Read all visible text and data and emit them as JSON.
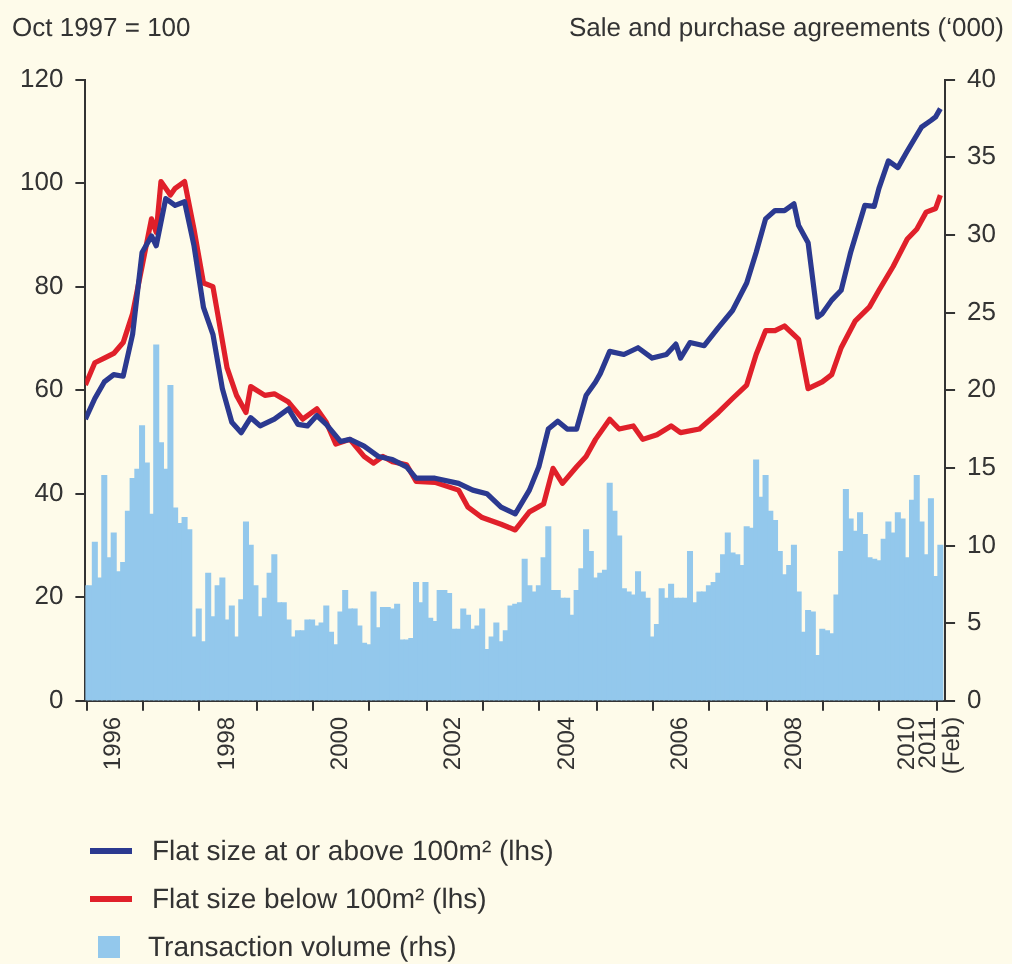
{
  "chart_data": {
    "type": "line",
    "ylabel": "Oct 1997 = 100",
    "y2label": "Sale and purchase agreements (‘000)",
    "legend": "bottom",
    "marker": "none",
    "x": [
      "1996-01",
      "1996-02",
      "1996-03",
      "1996-04",
      "1996-05",
      "1996-06",
      "1996-07",
      "1996-08",
      "1996-09",
      "1996-10",
      "1996-11",
      "1996-12",
      "1997-01",
      "1997-02",
      "1997-03",
      "1997-04",
      "1997-05",
      "1997-06",
      "1997-07",
      "1997-08",
      "1997-09",
      "1997-10",
      "1997-11",
      "1997-12",
      "1998-01",
      "1998-02",
      "1998-03",
      "1998-04",
      "1998-05",
      "1998-06",
      "1998-07",
      "1998-08",
      "1998-09",
      "1998-10",
      "1998-11",
      "1998-12",
      "1999-01",
      "1999-02",
      "1999-03",
      "1999-04",
      "1999-05",
      "1999-06",
      "1999-07",
      "1999-08",
      "1999-09",
      "1999-10",
      "1999-11",
      "1999-12",
      "2000-01",
      "2000-02",
      "2000-03",
      "2000-04",
      "2000-05",
      "2000-06",
      "2000-07",
      "2000-08",
      "2000-09",
      "2000-10",
      "2000-11",
      "2000-12",
      "2001-01",
      "2001-02",
      "2001-03",
      "2001-04",
      "2001-05",
      "2001-06",
      "2001-07",
      "2001-08",
      "2001-09",
      "2001-10",
      "2001-11",
      "2001-12",
      "2002-01",
      "2002-02",
      "2002-03",
      "2002-04",
      "2002-05",
      "2002-06",
      "2002-07",
      "2002-08",
      "2002-09",
      "2002-10",
      "2002-11",
      "2002-12",
      "2003-01",
      "2003-02",
      "2003-03",
      "2003-04",
      "2003-05",
      "2003-06",
      "2003-07",
      "2003-08",
      "2003-09",
      "2003-10",
      "2003-11",
      "2003-12",
      "2004-01",
      "2004-02",
      "2004-03",
      "2004-04",
      "2004-05",
      "2004-06",
      "2004-07",
      "2004-08",
      "2004-09",
      "2004-10",
      "2004-11",
      "2004-12",
      "2005-01",
      "2005-02",
      "2005-03",
      "2005-04",
      "2005-05",
      "2005-06",
      "2005-07",
      "2005-08",
      "2005-09",
      "2005-10",
      "2005-11",
      "2005-12",
      "2006-01",
      "2006-02",
      "2006-03",
      "2006-04",
      "2006-05",
      "2006-06",
      "2006-07",
      "2006-08",
      "2006-09",
      "2006-10",
      "2006-11",
      "2006-12",
      "2007-01",
      "2007-02",
      "2007-03",
      "2007-04",
      "2007-05",
      "2007-06",
      "2007-07",
      "2007-08",
      "2007-09",
      "2007-10",
      "2007-11",
      "2007-12",
      "2008-01",
      "2008-02",
      "2008-03",
      "2008-04",
      "2008-05",
      "2008-06",
      "2008-07",
      "2008-08",
      "2008-09",
      "2008-10",
      "2008-11",
      "2008-12",
      "2009-01",
      "2009-02",
      "2009-03",
      "2009-04",
      "2009-05",
      "2009-06",
      "2009-07",
      "2009-08",
      "2009-09",
      "2009-10",
      "2009-11",
      "2009-12",
      "2010-01",
      "2010-02",
      "2010-03",
      "2010-04",
      "2010-05",
      "2010-06",
      "2010-07",
      "2010-08",
      "2010-09",
      "2010-10",
      "2010-11",
      "2010-12",
      "2011-01",
      "2011-02"
    ],
    "xlim": [
      "1996-01",
      "2011-03"
    ],
    "xticks": [
      {
        "value": "1996-01",
        "label": null
      },
      {
        "value": "1997-01",
        "label": null
      },
      {
        "value": "1998-01",
        "label": null
      },
      {
        "value": "1999-01",
        "label": null
      },
      {
        "value": "2000-01",
        "label": null
      },
      {
        "value": "2001-01",
        "label": null
      },
      {
        "value": "2002-01",
        "label": null
      },
      {
        "value": "2003-01",
        "label": null
      },
      {
        "value": "2004-01",
        "label": null
      },
      {
        "value": "2005-01",
        "label": null
      },
      {
        "value": "2006-01",
        "label": null
      },
      {
        "value": "2007-01",
        "label": null
      },
      {
        "value": "2008-01",
        "label": null
      },
      {
        "value": "2009-01",
        "label": null
      },
      {
        "value": "2010-01",
        "label": null
      },
      {
        "value": "2011-01",
        "label": null
      },
      {
        "value": "1996-07",
        "label": "1996"
      },
      {
        "value": "1998-07",
        "label": "1998"
      },
      {
        "value": "2000-07",
        "label": "2000"
      },
      {
        "value": "2002-07",
        "label": "2002"
      },
      {
        "value": "2004-07",
        "label": "2004"
      },
      {
        "value": "2006-07",
        "label": "2006"
      },
      {
        "value": "2008-07",
        "label": "2008"
      },
      {
        "value": "2010-07",
        "label": "2010"
      },
      {
        "value": "2011-02",
        "label": "2011 (Feb)"
      }
    ],
    "ylim": [
      0,
      120
    ],
    "yticks": [
      0,
      20,
      40,
      60,
      80,
      100,
      120
    ],
    "y2lim": [
      0,
      40
    ],
    "y2ticks": [
      0,
      5,
      10,
      15,
      20,
      25,
      30,
      35,
      40
    ],
    "series": [
      {
        "name": "Flat size at or above 100m² (lhs)",
        "color": "#2b3990",
        "x": [
          "1996-01",
          "1996-03",
          "1996-05",
          "1996-07",
          "1996-09",
          "1996-11",
          "1997-01",
          "1997-03",
          "1997-04",
          "1997-06",
          "1997-08",
          "1997-10",
          "1997-12",
          "1998-02",
          "1998-04",
          "1998-06",
          "1998-08",
          "1998-10",
          "1998-12",
          "1999-02",
          "1999-05",
          "1999-08",
          "1999-10",
          "1999-12",
          "2000-02",
          "2000-04",
          "2000-07",
          "2000-09",
          "2000-12",
          "2001-03",
          "2001-06",
          "2001-09",
          "2001-11",
          "2002-03",
          "2002-08",
          "2002-11",
          "2003-02",
          "2003-05",
          "2003-08",
          "2003-11",
          "2004-01",
          "2004-03",
          "2004-05",
          "2004-07",
          "2004-09",
          "2004-11",
          "2005-01",
          "2005-02",
          "2005-04",
          "2005-07",
          "2005-10",
          "2006-01",
          "2006-04",
          "2006-06",
          "2006-07",
          "2006-09",
          "2006-12",
          "2007-03",
          "2007-06",
          "2007-09",
          "2007-11",
          "2008-01",
          "2008-03",
          "2008-05",
          "2008-07",
          "2008-08",
          "2008-10",
          "2008-12",
          "2009-01",
          "2009-03",
          "2009-05",
          "2009-07",
          "2009-10",
          "2009-12",
          "2010-01",
          "2010-03",
          "2010-05",
          "2010-07",
          "2010-10",
          "2010-12",
          "2011-01",
          "2011-02"
        ],
        "values": [
          54.4,
          58.4,
          61.6,
          63,
          62.7,
          70.8,
          86.6,
          89.8,
          87.9,
          97,
          95.7,
          96.4,
          87.9,
          76,
          70.8,
          60.3,
          53.8,
          51.8,
          54.7,
          53.1,
          54.4,
          56.4,
          53.4,
          53.1,
          55.1,
          53.4,
          50.1,
          50.5,
          49.2,
          47.2,
          46.6,
          45.2,
          43,
          43,
          42,
          40.7,
          40,
          37.4,
          36.1,
          40.7,
          45.2,
          52.5,
          54,
          52.5,
          52.5,
          59,
          61.6,
          63.2,
          67.5,
          66.9,
          68.2,
          66.2,
          66.9,
          68.9,
          66.2,
          69.2,
          68.6,
          72.1,
          75.4,
          80.7,
          86.6,
          93.1,
          94.7,
          94.7,
          96,
          91.8,
          88.5,
          74.1,
          74.8,
          77.4,
          79.3,
          86.6,
          95.7,
          95.5,
          99,
          104.3,
          103,
          106.2,
          110.8,
          112.1,
          112.8,
          114.4
        ]
      },
      {
        "name": "Flat size below 100m² (lhs)",
        "color": "#e0202a",
        "x": [
          "1996-01",
          "1996-03",
          "1996-05",
          "1996-07",
          "1996-09",
          "1996-11",
          "1997-01",
          "1997-03",
          "1997-04",
          "1997-05",
          "1997-07",
          "1997-08",
          "1997-10",
          "1997-12",
          "1998-02",
          "1998-04",
          "1998-05",
          "1998-07",
          "1998-09",
          "1998-11",
          "1998-12",
          "1999-03",
          "1999-05",
          "1999-08",
          "1999-11",
          "2000-02",
          "2000-04",
          "2000-06",
          "2000-09",
          "2000-12",
          "2001-02",
          "2001-04",
          "2001-06",
          "2001-09",
          "2001-11",
          "2002-03",
          "2002-08",
          "2002-10",
          "2003-01",
          "2003-05",
          "2003-08",
          "2003-11",
          "2004-02",
          "2004-04",
          "2004-06",
          "2004-09",
          "2004-11",
          "2005-01",
          "2005-04",
          "2005-06",
          "2005-09",
          "2005-11",
          "2006-02",
          "2006-05",
          "2006-07",
          "2006-11",
          "2007-03",
          "2007-06",
          "2007-09",
          "2007-11",
          "2008-01",
          "2008-03",
          "2008-05",
          "2008-08",
          "2008-10",
          "2009-01",
          "2009-03",
          "2009-05",
          "2009-08",
          "2009-11",
          "2010-01",
          "2010-04",
          "2010-07",
          "2010-09",
          "2010-11",
          "2011-01",
          "2011-02"
        ],
        "values": [
          61,
          65.3,
          66.2,
          67.1,
          69.2,
          74.8,
          83.9,
          93.1,
          90.5,
          100.3,
          97.7,
          99,
          100.3,
          91.1,
          80.7,
          80,
          74.8,
          64.3,
          59,
          55.7,
          60.7,
          59,
          59.3,
          57.7,
          54.4,
          56.4,
          53.8,
          49.6,
          50.5,
          47.2,
          45.9,
          47.2,
          46.2,
          45.6,
          42.4,
          42.2,
          40.7,
          37.4,
          35.4,
          34.1,
          33,
          36.5,
          38,
          44.9,
          42,
          45.2,
          47.2,
          50.5,
          54.4,
          52.5,
          53.1,
          50.5,
          51.4,
          53.1,
          51.8,
          52.5,
          55.7,
          58.4,
          61,
          66.9,
          71.5,
          71.5,
          72.4,
          69.8,
          60.3,
          61.6,
          63,
          68.2,
          73.4,
          76.1,
          79.3,
          83.9,
          89.2,
          91.1,
          94.4,
          95.1,
          97.7
        ]
      },
      {
        "name": "Transaction volume (rhs)",
        "type": "bar",
        "axis": "y2",
        "color": "#93c8ec",
        "values": [
          7.4,
          7.4,
          10.2,
          7.9,
          14.5,
          9.2,
          10.8,
          8.3,
          8.9,
          12.2,
          14.3,
          14.9,
          17.7,
          15.3,
          12.0,
          22.9,
          16.6,
          14.9,
          20.3,
          12.4,
          11.4,
          11.8,
          11.0,
          4.1,
          5.9,
          3.8,
          8.2,
          5.4,
          7.4,
          7.9,
          5.2,
          6.1,
          4.1,
          6.5,
          11.5,
          10.0,
          7.4,
          5.4,
          6.6,
          8.2,
          9.4,
          6.3,
          6.3,
          5.2,
          4.1,
          4.5,
          4.5,
          5.2,
          5.2,
          4.8,
          5.0,
          6.1,
          4.4,
          3.6,
          5.7,
          7.1,
          5.9,
          5.9,
          4.8,
          3.7,
          3.6,
          7.0,
          4.7,
          6.0,
          6.0,
          5.9,
          6.2,
          3.9,
          3.9,
          4.0,
          7.6,
          6.3,
          7.6,
          5.3,
          5.1,
          7.1,
          7.1,
          6.9,
          4.6,
          4.6,
          5.9,
          5.5,
          4.6,
          4.8,
          5.9,
          3.3,
          4.1,
          5.0,
          3.8,
          4.5,
          6.1,
          6.2,
          6.3,
          9.1,
          7.4,
          7.0,
          7.4,
          9.2,
          11.2,
          7.1,
          7.1,
          6.6,
          6.6,
          5.5,
          7.1,
          8.5,
          11.0,
          9.6,
          7.9,
          8.2,
          8.4,
          14.0,
          12.2,
          10.6,
          7.2,
          7.0,
          6.8,
          8.3,
          7.0,
          6.6,
          4.1,
          4.9,
          7.2,
          6.6,
          7.5,
          6.6,
          6.6,
          6.6,
          9.6,
          6.3,
          7.0,
          7.0,
          7.4,
          7.6,
          8.2,
          9.4,
          10.8,
          9.5,
          9.4,
          8.7,
          11.2,
          11.1,
          15.5,
          13.1,
          14.5,
          12.2,
          11.6,
          9.6,
          8.1,
          8.7,
          10.0,
          7.0,
          4.4,
          5.8,
          5.7,
          2.9,
          4.6,
          4.5,
          4.3,
          6.8,
          9.6,
          13.6,
          11.7,
          10.9,
          12.1,
          10.7,
          9.2,
          9.1,
          9.0,
          10.4,
          11.5,
          10.8,
          12.1,
          11.7,
          9.2,
          12.9,
          14.5,
          11.5,
          9.4,
          13.0,
          8.0,
          10.0
        ]
      }
    ]
  }
}
